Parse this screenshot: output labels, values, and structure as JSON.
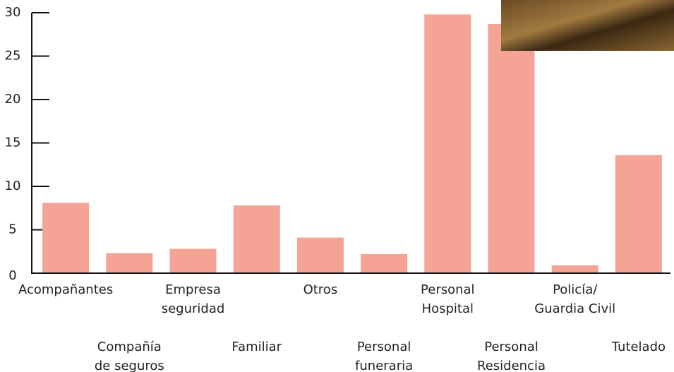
{
  "chart_data": {
    "type": "bar",
    "categories": [
      [
        "Acompañantes"
      ],
      [
        "Compañía",
        "de seguros"
      ],
      [
        "Empresa",
        "seguridad"
      ],
      [
        "Familiar"
      ],
      [
        "Otros"
      ],
      [
        "Personal",
        "funeraria"
      ],
      [
        "Personal",
        "Hospital"
      ],
      [
        "Personal",
        "Residencia"
      ],
      [
        "Policía/",
        "Guardia Civil"
      ],
      [
        "Tutelado"
      ]
    ],
    "values": [
      8.1,
      2.3,
      2.8,
      7.8,
      4.1,
      2.2,
      29.8,
      28.7,
      0.9,
      13.6
    ],
    "color": "#f4a394",
    "ylim": [
      0,
      30
    ],
    "yticks": [
      0,
      5,
      10,
      15,
      20,
      25,
      30
    ]
  }
}
